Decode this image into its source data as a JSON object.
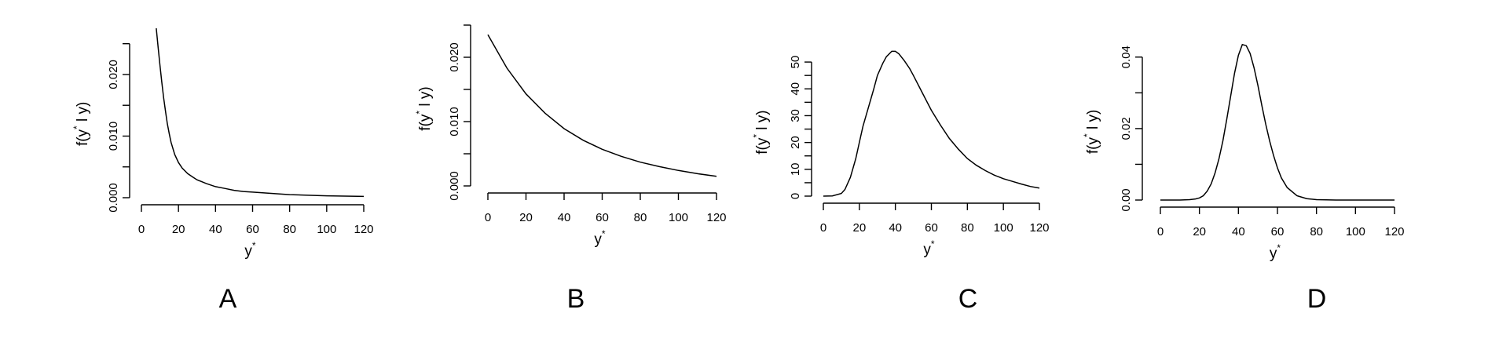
{
  "chart_data": [
    {
      "type": "line",
      "panel_label": "A",
      "xlabel": "y",
      "xlabel_sup": "*",
      "ylabel": "f(y",
      "ylabel_sup": "*",
      "ylabel_rest": " l y)",
      "xlim": [
        0,
        120
      ],
      "ylim": [
        0,
        0.027
      ],
      "xticks": [
        0,
        20,
        40,
        60,
        80,
        100,
        120
      ],
      "xtick_labels": [
        "0",
        "20",
        "40",
        "60",
        "80",
        "100",
        "120"
      ],
      "yticks": [
        0,
        0.005,
        0.01,
        0.015,
        0.02,
        0.025
      ],
      "ytick_labels": [
        "0.000",
        "",
        "0.010",
        "",
        "0.020",
        ""
      ],
      "series": [
        {
          "x": [
            8,
            9,
            10,
            11,
            12,
            13,
            14,
            15,
            16,
            18,
            20,
            22,
            25,
            28,
            30,
            35,
            40,
            45,
            50,
            55,
            60,
            70,
            80,
            90,
            100,
            110,
            120
          ],
          "y": [
            0.0275,
            0.0245,
            0.0215,
            0.0188,
            0.0162,
            0.014,
            0.012,
            0.0104,
            0.009,
            0.007,
            0.0057,
            0.0048,
            0.0039,
            0.0033,
            0.0029,
            0.0023,
            0.0018,
            0.0015,
            0.0012,
            0.001,
            0.0009,
            0.0007,
            0.0005,
            0.0004,
            0.0003,
            0.00025,
            0.0002
          ]
        }
      ]
    },
    {
      "type": "line",
      "panel_label": "B",
      "xlabel": "y",
      "xlabel_sup": "*",
      "ylabel": "f(y",
      "ylabel_sup": "*",
      "ylabel_rest": " l y)",
      "xlim": [
        0,
        120
      ],
      "ylim": [
        0,
        0.025
      ],
      "xticks": [
        0,
        20,
        40,
        60,
        80,
        100,
        120
      ],
      "xtick_labels": [
        "0",
        "20",
        "40",
        "60",
        "80",
        "100",
        "120"
      ],
      "yticks": [
        0,
        0.005,
        0.01,
        0.015,
        0.02,
        0.025
      ],
      "ytick_labels": [
        "0.000",
        "",
        "0.010",
        "",
        "0.020",
        ""
      ],
      "series": [
        {
          "x": [
            0,
            10,
            20,
            30,
            40,
            50,
            60,
            70,
            80,
            90,
            100,
            110,
            120
          ],
          "y": [
            0.0235,
            0.0183,
            0.0143,
            0.0113,
            0.0089,
            0.0071,
            0.0057,
            0.0046,
            0.0037,
            0.003,
            0.0024,
            0.0019,
            0.0015
          ]
        }
      ]
    },
    {
      "type": "line",
      "panel_label": "C",
      "xlabel": "y",
      "xlabel_sup": "*",
      "ylabel": "f(y",
      "ylabel_sup": "*",
      "ylabel_rest": " l y)",
      "xlim": [
        0,
        120
      ],
      "ylim": [
        0,
        55
      ],
      "xticks": [
        0,
        20,
        40,
        60,
        80,
        100,
        120
      ],
      "xtick_labels": [
        "0",
        "20",
        "40",
        "60",
        "80",
        "100",
        "120"
      ],
      "yticks": [
        0,
        5,
        10,
        15,
        20,
        25,
        30,
        35,
        40,
        45,
        50
      ],
      "ytick_labels": [
        "0",
        "",
        "10",
        "",
        "20",
        "",
        "30",
        "",
        "40",
        "",
        "50"
      ],
      "series": [
        {
          "x": [
            0,
            5,
            10,
            12,
            15,
            18,
            20,
            22,
            25,
            28,
            30,
            33,
            35,
            38,
            40,
            42,
            45,
            48,
            50,
            55,
            60,
            65,
            70,
            75,
            80,
            85,
            90,
            95,
            100,
            105,
            110,
            115,
            120
          ],
          "y": [
            0,
            0.1,
            1.0,
            2.5,
            7.0,
            14.0,
            20.0,
            26.0,
            33.0,
            40.0,
            45.0,
            49.5,
            52.0,
            54.0,
            54.0,
            53.0,
            50.5,
            47.5,
            45.0,
            38.5,
            32.0,
            26.5,
            21.5,
            17.5,
            14.0,
            11.5,
            9.5,
            7.8,
            6.5,
            5.5,
            4.5,
            3.6,
            3.0
          ]
        }
      ]
    },
    {
      "type": "line",
      "panel_label": "D",
      "xlabel": "y",
      "xlabel_sup": "*",
      "ylabel": "f(y",
      "ylabel_sup": "*",
      "ylabel_rest": " l y)",
      "xlim": [
        0,
        120
      ],
      "ylim": [
        0,
        0.045
      ],
      "xticks": [
        0,
        20,
        40,
        60,
        80,
        100,
        120
      ],
      "xtick_labels": [
        "0",
        "20",
        "40",
        "60",
        "80",
        "100",
        "120"
      ],
      "yticks": [
        0,
        0.01,
        0.02,
        0.03,
        0.04
      ],
      "ytick_labels": [
        "0.00",
        "",
        "0.02",
        "",
        "0.04"
      ],
      "series": [
        {
          "x": [
            0,
            10,
            15,
            18,
            20,
            22,
            24,
            26,
            28,
            30,
            32,
            34,
            36,
            38,
            40,
            42,
            44,
            46,
            48,
            50,
            52,
            54,
            56,
            58,
            60,
            62,
            65,
            70,
            75,
            80,
            90,
            100,
            110,
            120
          ],
          "y": [
            0,
            0,
            0.0001,
            0.0003,
            0.0006,
            0.0012,
            0.0025,
            0.0045,
            0.0075,
            0.0115,
            0.0165,
            0.0225,
            0.029,
            0.0355,
            0.0405,
            0.0435,
            0.0432,
            0.041,
            0.037,
            0.032,
            0.0265,
            0.0212,
            0.0165,
            0.0125,
            0.009,
            0.0062,
            0.0035,
            0.0012,
            0.0004,
            0.0001,
            0,
            0,
            0,
            0
          ]
        }
      ]
    }
  ]
}
